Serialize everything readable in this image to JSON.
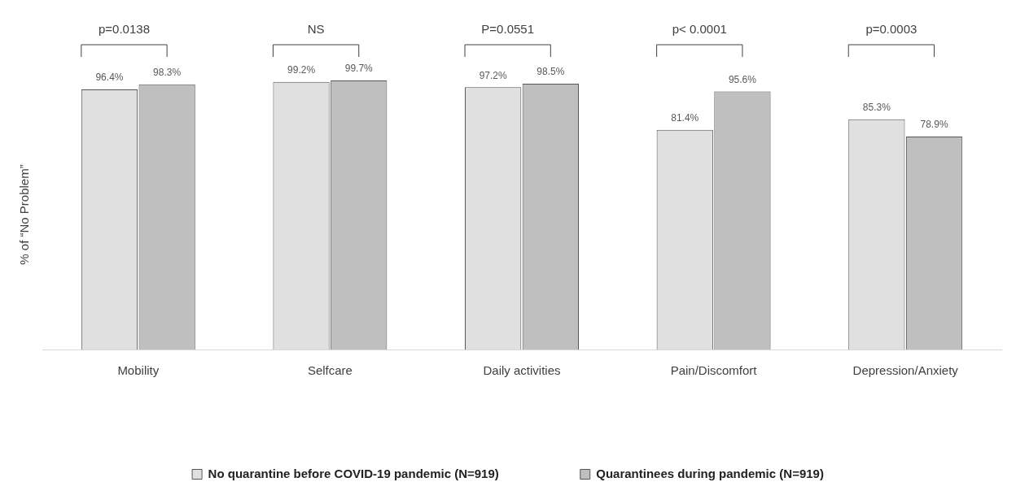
{
  "chart_data": {
    "type": "bar",
    "ylabel": "% of “No Problem”",
    "categories": [
      "Mobility",
      "Selfcare",
      "Daily activities",
      "Pain/Discomfort",
      "Depression/Anxiety"
    ],
    "series": [
      {
        "name": "No quarantine before COVID-19 pandemic (N=919)",
        "color": "#e0e0e0",
        "values": [
          96.4,
          99.2,
          97.2,
          81.4,
          85.3
        ],
        "value_labels": [
          "96.4%",
          "99.2%",
          "97.2%",
          "81.4%",
          "85.3%"
        ]
      },
      {
        "name": "Quarantinees during pandemic (N=919)",
        "color": "#bfbfbf",
        "values": [
          98.3,
          99.7,
          98.5,
          95.6,
          78.9
        ],
        "value_labels": [
          "98.3%",
          "99.7%",
          "98.5%",
          "95.6%",
          "78.9%"
        ]
      }
    ],
    "annotations": [
      "p=0.0138",
      "NS",
      "P=0.0551",
      "p< 0.0001",
      "p=0.0003"
    ],
    "tick_labels": "x",
    "grid": false,
    "legend": "bottom"
  }
}
